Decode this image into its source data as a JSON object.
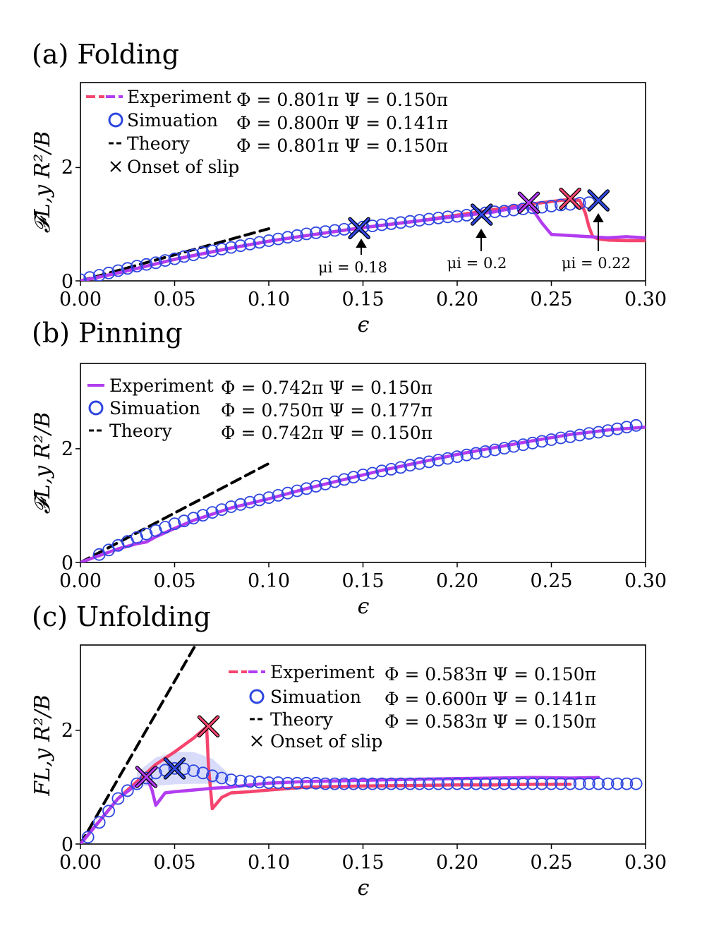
{
  "chart_data": [
    {
      "type": "line",
      "panel_label": "(a) Folding",
      "xlabel": "ϵ",
      "ylabel": "𝓕L,y R²/B",
      "xlim": [
        0,
        0.3
      ],
      "ylim": [
        0,
        3.5
      ],
      "xticks": [
        "0.00",
        "0.05",
        "0.10",
        "0.15",
        "0.20",
        "0.25",
        "0.30"
      ],
      "yticks": [
        "0",
        "2"
      ],
      "legend": [
        {
          "label": "Experiment",
          "params": "Φ = 0.801π  Ψ = 0.150π",
          "style": "dashed-pink-purple"
        },
        {
          "label": "Simuation",
          "params": "Φ = 0.800π  Ψ = 0.141π",
          "style": "circle"
        },
        {
          "label": "Theory",
          "params": "Φ = 0.801π  Ψ = 0.150π",
          "style": "dashed-black"
        },
        {
          "label": "Onset of slip",
          "params": "",
          "style": "cross"
        }
      ],
      "series": [
        {
          "name": "Theory",
          "color": "#000000",
          "x": [
            0.0,
            0.1
          ],
          "y": [
            0.0,
            0.92
          ]
        },
        {
          "name": "Experiment (μi=0.22, pink)",
          "color": "#f5446e",
          "x": [
            0.0,
            0.02,
            0.05,
            0.08,
            0.1,
            0.12,
            0.15,
            0.18,
            0.2,
            0.22,
            0.24,
            0.26,
            0.265,
            0.268,
            0.27,
            0.272,
            0.275,
            0.28,
            0.29,
            0.3
          ],
          "y": [
            0.0,
            0.14,
            0.38,
            0.58,
            0.7,
            0.8,
            0.94,
            1.06,
            1.16,
            1.26,
            1.36,
            1.44,
            1.42,
            1.2,
            0.95,
            0.78,
            0.74,
            0.72,
            0.71,
            0.71
          ]
        },
        {
          "name": "Experiment (μi=0.2, purple)",
          "color": "#b23cf0",
          "x": [
            0.0,
            0.02,
            0.05,
            0.08,
            0.1,
            0.12,
            0.15,
            0.18,
            0.2,
            0.22,
            0.235,
            0.24,
            0.245,
            0.25,
            0.26,
            0.27,
            0.28,
            0.29,
            0.3
          ],
          "y": [
            0.0,
            0.14,
            0.38,
            0.58,
            0.7,
            0.8,
            0.94,
            1.06,
            1.14,
            1.22,
            1.32,
            1.26,
            1.02,
            0.82,
            0.8,
            0.78,
            0.76,
            0.78,
            0.76
          ]
        },
        {
          "name": "Simulation",
          "color": "#2f47e0",
          "x": [
            0.0,
            0.005,
            0.01,
            0.015,
            0.02,
            0.025,
            0.03,
            0.035,
            0.04,
            0.045,
            0.05,
            0.055,
            0.06,
            0.065,
            0.07,
            0.075,
            0.08,
            0.085,
            0.09,
            0.095,
            0.1,
            0.105,
            0.11,
            0.115,
            0.12,
            0.125,
            0.13,
            0.135,
            0.14,
            0.145,
            0.15,
            0.155,
            0.16,
            0.165,
            0.17,
            0.175,
            0.18,
            0.185,
            0.19,
            0.195,
            0.2,
            0.205,
            0.21,
            0.215,
            0.22,
            0.225,
            0.23,
            0.235,
            0.24,
            0.245,
            0.25,
            0.255,
            0.26,
            0.265,
            0.27
          ],
          "y": [
            0.02,
            0.06,
            0.1,
            0.14,
            0.18,
            0.22,
            0.26,
            0.29,
            0.32,
            0.36,
            0.39,
            0.43,
            0.46,
            0.5,
            0.53,
            0.56,
            0.59,
            0.62,
            0.65,
            0.68,
            0.71,
            0.74,
            0.77,
            0.8,
            0.83,
            0.85,
            0.87,
            0.89,
            0.91,
            0.93,
            0.95,
            0.97,
            0.99,
            1.01,
            1.03,
            1.05,
            1.07,
            1.09,
            1.11,
            1.13,
            1.14,
            1.16,
            1.18,
            1.2,
            1.22,
            1.23,
            1.25,
            1.27,
            1.29,
            1.3,
            1.32,
            1.34,
            1.35,
            1.37,
            1.38
          ]
        }
      ],
      "slip_markers": [
        {
          "x": 0.148,
          "y": 0.93,
          "color": "#2f47e0"
        },
        {
          "x": 0.213,
          "y": 1.17,
          "color": "#2f47e0"
        },
        {
          "x": 0.238,
          "y": 1.38,
          "color": "#b23cf0"
        },
        {
          "x": 0.26,
          "y": 1.45,
          "color": "#f5446e"
        },
        {
          "x": 0.275,
          "y": 1.42,
          "color": "#2f47e0"
        }
      ],
      "annotations": [
        {
          "text": "μi = 0.18",
          "x": 0.148
        },
        {
          "text": "μi = 0.2",
          "x": 0.213
        },
        {
          "text": "μi = 0.22",
          "x": 0.275
        }
      ]
    },
    {
      "type": "line",
      "panel_label": "(b) Pinning",
      "xlabel": "ϵ",
      "ylabel": "𝓕L,y R²/B",
      "xlim": [
        0,
        0.3
      ],
      "ylim": [
        0,
        3.5
      ],
      "xticks": [
        "0.00",
        "0.05",
        "0.10",
        "0.15",
        "0.20",
        "0.25",
        "0.30"
      ],
      "yticks": [
        "0",
        "2"
      ],
      "legend": [
        {
          "label": "Experiment",
          "params": "Φ = 0.742π  Ψ = 0.150π",
          "style": "solid-purple"
        },
        {
          "label": "Simuation",
          "params": "Φ = 0.750π  Ψ = 0.177π",
          "style": "circle"
        },
        {
          "label": "Theory",
          "params": "Φ = 0.742π  Ψ = 0.150π",
          "style": "dashed-black"
        }
      ],
      "series": [
        {
          "name": "Theory",
          "color": "#000000",
          "x": [
            0.0,
            0.1
          ],
          "y": [
            0.0,
            1.74
          ]
        },
        {
          "name": "Experiment",
          "color": "#b23cf0",
          "x": [
            0.0,
            0.01,
            0.02,
            0.03,
            0.035,
            0.04,
            0.05,
            0.06,
            0.08,
            0.1,
            0.12,
            0.14,
            0.16,
            0.18,
            0.2,
            0.22,
            0.24,
            0.26,
            0.28,
            0.3
          ],
          "y": [
            0.0,
            0.12,
            0.24,
            0.33,
            0.36,
            0.45,
            0.6,
            0.74,
            0.96,
            1.12,
            1.3,
            1.46,
            1.62,
            1.76,
            1.9,
            2.02,
            2.14,
            2.25,
            2.33,
            2.38
          ]
        },
        {
          "name": "Simulation",
          "color": "#2f47e0",
          "x": [
            0.01,
            0.015,
            0.02,
            0.025,
            0.03,
            0.035,
            0.04,
            0.045,
            0.05,
            0.055,
            0.06,
            0.065,
            0.07,
            0.075,
            0.08,
            0.085,
            0.09,
            0.095,
            0.1,
            0.105,
            0.11,
            0.115,
            0.12,
            0.125,
            0.13,
            0.135,
            0.14,
            0.145,
            0.15,
            0.155,
            0.16,
            0.165,
            0.17,
            0.175,
            0.18,
            0.185,
            0.19,
            0.195,
            0.2,
            0.205,
            0.21,
            0.215,
            0.22,
            0.225,
            0.23,
            0.235,
            0.24,
            0.245,
            0.25,
            0.255,
            0.26,
            0.265,
            0.27,
            0.275,
            0.28,
            0.285,
            0.29,
            0.295
          ],
          "y": [
            0.14,
            0.22,
            0.3,
            0.37,
            0.44,
            0.5,
            0.56,
            0.62,
            0.68,
            0.73,
            0.78,
            0.83,
            0.88,
            0.93,
            0.98,
            1.02,
            1.06,
            1.1,
            1.14,
            1.18,
            1.22,
            1.26,
            1.3,
            1.34,
            1.38,
            1.42,
            1.46,
            1.5,
            1.54,
            1.57,
            1.61,
            1.64,
            1.67,
            1.71,
            1.74,
            1.77,
            1.8,
            1.83,
            1.86,
            1.89,
            1.92,
            1.95,
            1.98,
            2.01,
            2.04,
            2.07,
            2.1,
            2.13,
            2.16,
            2.19,
            2.21,
            2.24,
            2.27,
            2.29,
            2.32,
            2.35,
            2.38,
            2.41
          ]
        }
      ],
      "slip_markers": [],
      "annotations": []
    },
    {
      "type": "line",
      "panel_label": "(c) Unfolding",
      "xlabel": "ϵ",
      "ylabel": "FL,y R²/B",
      "xlim": [
        0,
        0.3
      ],
      "ylim": [
        0,
        3.5
      ],
      "xticks": [
        "0.00",
        "0.05",
        "0.10",
        "0.15",
        "0.20",
        "0.25",
        "0.30"
      ],
      "yticks": [
        "0",
        "2"
      ],
      "legend": [
        {
          "label": "Experiment",
          "params": "Φ = 0.583π  Ψ = 0.150π",
          "style": "dashed-pink-purple"
        },
        {
          "label": "Simuation",
          "params": "Φ = 0.600π  Ψ = 0.141π",
          "style": "circle"
        },
        {
          "label": "Theory",
          "params": "Φ = 0.583π  Ψ = 0.150π",
          "style": "dashed-black"
        },
        {
          "label": "Onset of slip",
          "params": "",
          "style": "cross"
        }
      ],
      "series": [
        {
          "name": "Theory",
          "color": "#000000",
          "x": [
            0.0,
            0.062
          ],
          "y": [
            0.0,
            3.55
          ]
        },
        {
          "name": "Experiment (pink)",
          "color": "#f5446e",
          "x": [
            0.0,
            0.01,
            0.02,
            0.03,
            0.04,
            0.05,
            0.06,
            0.067,
            0.068,
            0.07,
            0.075,
            0.08,
            0.09,
            0.1,
            0.12,
            0.15,
            0.18,
            0.2,
            0.22,
            0.24,
            0.26
          ],
          "y": [
            0.0,
            0.4,
            0.8,
            1.1,
            1.4,
            1.62,
            1.86,
            2.06,
            1.35,
            0.62,
            0.82,
            0.9,
            0.92,
            0.95,
            1.0,
            1.02,
            1.03,
            1.04,
            1.04,
            1.05,
            1.05
          ]
        },
        {
          "name": "Experiment (purple)",
          "color": "#b23cf0",
          "x": [
            0.0,
            0.01,
            0.02,
            0.03,
            0.035,
            0.038,
            0.04,
            0.045,
            0.05,
            0.06,
            0.07,
            0.08,
            0.09,
            0.1,
            0.12,
            0.15,
            0.18,
            0.2,
            0.22,
            0.24,
            0.26,
            0.275
          ],
          "y": [
            0.0,
            0.4,
            0.8,
            1.05,
            1.18,
            0.95,
            0.68,
            0.9,
            0.92,
            0.95,
            0.98,
            1.0,
            1.04,
            1.07,
            1.1,
            1.12,
            1.14,
            1.15,
            1.16,
            1.17,
            1.16,
            1.17
          ]
        },
        {
          "name": "Simulation",
          "color": "#2f47e0",
          "x": [
            0.004,
            0.01,
            0.015,
            0.02,
            0.025,
            0.03,
            0.035,
            0.04,
            0.045,
            0.05,
            0.055,
            0.06,
            0.065,
            0.07,
            0.075,
            0.08,
            0.085,
            0.09,
            0.095,
            0.1,
            0.105,
            0.11,
            0.115,
            0.12,
            0.125,
            0.13,
            0.135,
            0.14,
            0.145,
            0.15,
            0.155,
            0.16,
            0.165,
            0.17,
            0.175,
            0.18,
            0.185,
            0.19,
            0.195,
            0.2,
            0.205,
            0.21,
            0.215,
            0.22,
            0.225,
            0.23,
            0.235,
            0.24,
            0.245,
            0.25,
            0.255,
            0.26,
            0.265,
            0.27,
            0.275,
            0.28,
            0.285,
            0.29,
            0.295
          ],
          "y": [
            0.12,
            0.38,
            0.58,
            0.8,
            0.94,
            1.06,
            1.16,
            1.25,
            1.3,
            1.33,
            1.32,
            1.29,
            1.25,
            1.2,
            1.16,
            1.13,
            1.11,
            1.1,
            1.09,
            1.08,
            1.08,
            1.07,
            1.07,
            1.07,
            1.07,
            1.06,
            1.06,
            1.06,
            1.06,
            1.06,
            1.06,
            1.06,
            1.06,
            1.06,
            1.06,
            1.06,
            1.06,
            1.06,
            1.06,
            1.06,
            1.06,
            1.06,
            1.06,
            1.06,
            1.06,
            1.06,
            1.06,
            1.06,
            1.06,
            1.06,
            1.06,
            1.06,
            1.06,
            1.06,
            1.06,
            1.06,
            1.06,
            1.06,
            1.06
          ]
        }
      ],
      "band": {
        "x": [
          0.03,
          0.04,
          0.05,
          0.06,
          0.07,
          0.08
        ],
        "upper": [
          1.26,
          1.52,
          1.62,
          1.62,
          1.5,
          1.2
        ],
        "lower": [
          1.02,
          1.02,
          1.05,
          1.06,
          1.06,
          1.1
        ]
      },
      "slip_markers": [
        {
          "x": 0.035,
          "y": 1.18,
          "color": "#b23cf0"
        },
        {
          "x": 0.05,
          "y": 1.33,
          "color": "#2f47e0"
        },
        {
          "x": 0.068,
          "y": 2.07,
          "color": "#f5446e"
        }
      ],
      "annotations": []
    }
  ]
}
